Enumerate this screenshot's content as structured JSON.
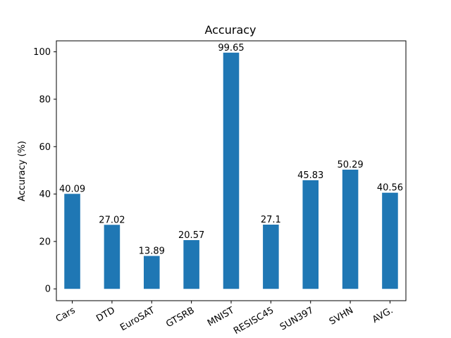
{
  "chart_data": {
    "type": "bar",
    "title": "Accuracy",
    "xlabel": "",
    "ylabel": "Accuracy (%)",
    "categories": [
      "Cars",
      "DTD",
      "EuroSAT",
      "GTSRB",
      "MNIST",
      "RESISC45",
      "SUN397",
      "SVHN",
      "AVG."
    ],
    "values": [
      40.09,
      27.02,
      13.89,
      20.57,
      99.65,
      27.1,
      45.83,
      50.29,
      40.56
    ],
    "data_labels": [
      "40.09",
      "27.02",
      "13.89",
      "20.57",
      "99.65",
      "27.1",
      "45.83",
      "50.29",
      "40.56"
    ],
    "ylim": [
      -4.98,
      104.63
    ],
    "yticks": [
      0,
      20,
      40,
      60,
      80,
      100
    ],
    "ytick_labels": [
      "0",
      "20",
      "40",
      "60",
      "80",
      "100"
    ],
    "xtick_rotation": 30,
    "bar_color": "#1f77b4",
    "grid": false,
    "legend": "none"
  }
}
